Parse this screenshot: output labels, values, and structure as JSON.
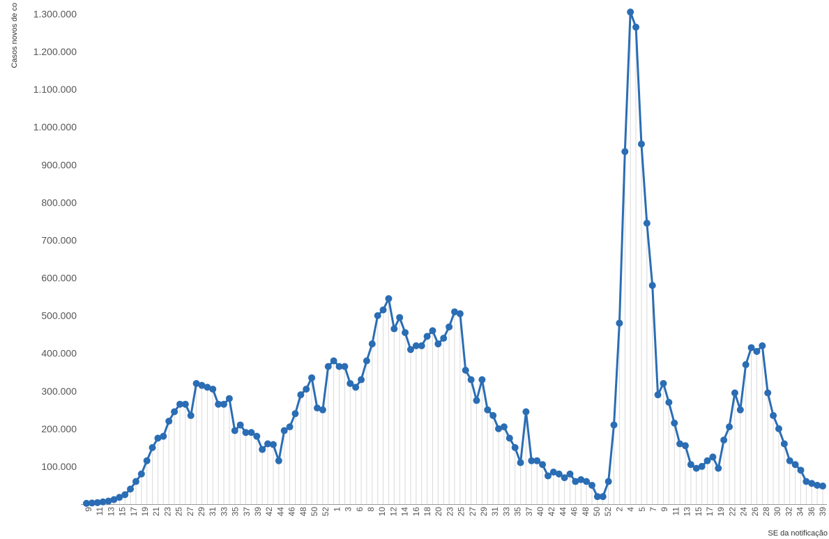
{
  "chart_data": {
    "type": "line",
    "title": "",
    "xlabel": "SE da notificação",
    "ylabel": "Casos novos de co",
    "ylim": [
      0,
      1300000
    ],
    "y_ticks": [
      "100.000",
      "200.000",
      "300.000",
      "400.000",
      "500.000",
      "600.000",
      "700.000",
      "800.000",
      "900.000",
      "1.000.000",
      "1.100.000",
      "1.200.000",
      "1.300.000"
    ],
    "x_tick_labels": [
      "9",
      "11",
      "13",
      "15",
      "17",
      "19",
      "21",
      "23",
      "25",
      "27",
      "29",
      "31",
      "33",
      "35",
      "37",
      "39",
      "42",
      "44",
      "46",
      "48",
      "50",
      "52",
      "1",
      "3",
      "6",
      "8",
      "10",
      "12",
      "14",
      "16",
      "18",
      "20",
      "23",
      "25",
      "27",
      "29",
      "31",
      "33",
      "35",
      "37",
      "40",
      "42",
      "44",
      "46",
      "48",
      "50",
      "52",
      "2",
      "4",
      "5",
      "7",
      "9",
      "11",
      "13",
      "15",
      "17",
      "19",
      "22",
      "24",
      "26",
      "28",
      "30",
      "32",
      "34",
      "36",
      "39"
    ],
    "line_color": "#2a6db4",
    "grid": false,
    "series": [
      {
        "values": [
          2000,
          3000,
          4000,
          6000,
          8000,
          12000,
          18000,
          25000,
          40000,
          60000,
          80000,
          115000,
          150000,
          175000,
          180000,
          220000,
          245000,
          265000,
          265000,
          235000,
          320000,
          315000,
          310000,
          305000,
          265000,
          265000,
          280000,
          195000,
          210000,
          190000,
          190000,
          180000,
          145000,
          160000,
          158000,
          115000,
          195000,
          205000,
          240000,
          290000,
          305000,
          335000,
          255000,
          250000,
          365000,
          380000,
          365000,
          365000,
          320000,
          310000,
          330000,
          380000,
          425000,
          500000,
          515000,
          545000,
          465000,
          495000,
          455000,
          410000,
          420000,
          420000,
          445000,
          460000,
          425000,
          440000,
          470000,
          510000,
          505000,
          355000,
          330000,
          275000,
          330000,
          250000,
          235000,
          200000,
          205000,
          175000,
          150000,
          110000,
          245000,
          115000,
          115000,
          105000,
          75000,
          85000,
          80000,
          70000,
          80000,
          60000,
          65000,
          60000,
          50000,
          20000,
          20000,
          60000,
          210000,
          480000,
          935000,
          1305000,
          1265000,
          955000,
          745000,
          580000,
          290000,
          320000,
          270000,
          215000,
          160000,
          155000,
          105000,
          95000,
          100000,
          115000,
          125000,
          95000,
          170000,
          205000,
          295000,
          250000,
          370000,
          415000,
          405000,
          420000,
          295000,
          235000,
          200000,
          160000,
          115000,
          105000,
          90000,
          60000,
          55000,
          50000,
          48000
        ]
      }
    ]
  }
}
